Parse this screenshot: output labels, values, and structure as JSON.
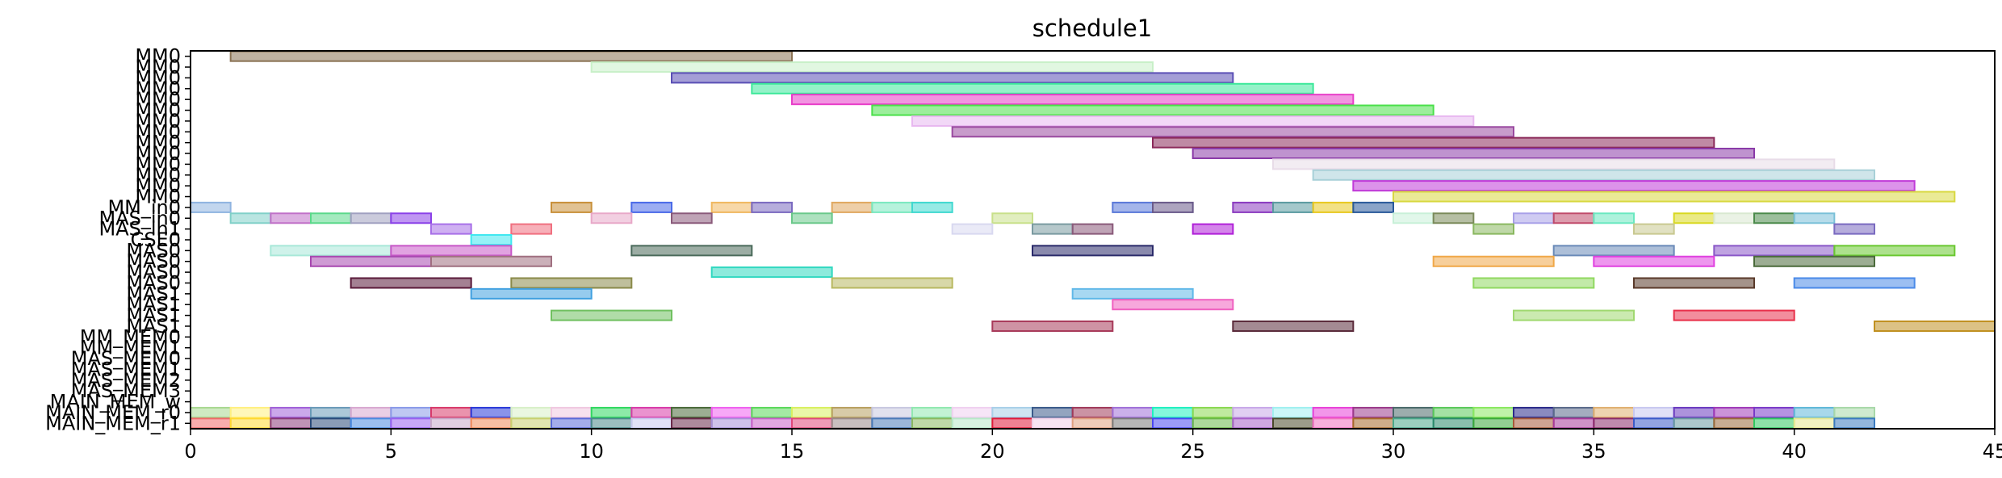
{
  "chart_data": {
    "type": "gantt",
    "title": "schedule1",
    "xlabel": "",
    "ylabel": "",
    "xlim": [
      0,
      45
    ],
    "xticks": [
      0,
      5,
      10,
      15,
      20,
      25,
      30,
      35,
      40,
      45
    ],
    "grid": false,
    "rows": [
      "MM0",
      "MM0",
      "MM0",
      "MM0",
      "MM0",
      "MM0",
      "MM0",
      "MM0",
      "MM0",
      "MM0",
      "MM0",
      "MM0",
      "MM0",
      "MM0",
      "MM_in0",
      "MAS_in0",
      "MAS_in1",
      "CSE0",
      "MAS0",
      "MAS0",
      "MAS0",
      "MAS0",
      "MAS1",
      "MAS1",
      "MAS1",
      "MAS1",
      "MM_MEM0",
      "MM_MEM1",
      "MAS_MEM0",
      "MAS_MEM1",
      "MAS_MEM2",
      "MAS_MEM3",
      "MAIN_MEM_w",
      "MAIN_MEM_r0",
      "MAIN_MEM_r1"
    ],
    "tasks": [
      {
        "row": 0,
        "start": 1,
        "end": 15,
        "color": "#8B7355"
      },
      {
        "row": 1,
        "start": 10,
        "end": 24,
        "color": "#C8F0C8"
      },
      {
        "row": 2,
        "start": 12,
        "end": 26,
        "color": "#5A4FB5"
      },
      {
        "row": 3,
        "start": 14,
        "end": 28,
        "color": "#3DE89A"
      },
      {
        "row": 4,
        "start": 15,
        "end": 29,
        "color": "#E83DC8"
      },
      {
        "row": 5,
        "start": 17,
        "end": 31,
        "color": "#4AE04A"
      },
      {
        "row": 6,
        "start": 18,
        "end": 32,
        "color": "#E8B8F0"
      },
      {
        "row": 7,
        "start": 19,
        "end": 33,
        "color": "#9A4AA0"
      },
      {
        "row": 8,
        "start": 24,
        "end": 38,
        "color": "#8B2A5A"
      },
      {
        "row": 9,
        "start": 25,
        "end": 39,
        "color": "#8A3AA8"
      },
      {
        "row": 10,
        "start": 27,
        "end": 41,
        "color": "#E8DCE8"
      },
      {
        "row": 11,
        "start": 28,
        "end": 42,
        "color": "#A8D0D8"
      },
      {
        "row": 12,
        "start": 29,
        "end": 43,
        "color": "#C03AD8"
      },
      {
        "row": 13,
        "start": 30,
        "end": 44,
        "color": "#D8D840"
      },
      {
        "row": 14,
        "start": 0,
        "end": 1,
        "color": "#8FB4E0"
      },
      {
        "row": 14,
        "start": 9,
        "end": 10,
        "color": "#C8903A"
      },
      {
        "row": 14,
        "start": 11,
        "end": 12,
        "color": "#4A6AE8"
      },
      {
        "row": 14,
        "start": 13,
        "end": 14,
        "color": "#F0B860"
      },
      {
        "row": 14,
        "start": 14,
        "end": 15,
        "color": "#7A6AC0"
      },
      {
        "row": 14,
        "start": 16,
        "end": 17,
        "color": "#E0A860"
      },
      {
        "row": 14,
        "start": 17,
        "end": 18,
        "color": "#7AE8C0"
      },
      {
        "row": 14,
        "start": 18,
        "end": 19,
        "color": "#40D8D0"
      },
      {
        "row": 14,
        "start": 23,
        "end": 24,
        "color": "#5A78D8"
      },
      {
        "row": 14,
        "start": 24,
        "end": 25,
        "color": "#6A5A8A"
      },
      {
        "row": 14,
        "start": 26,
        "end": 27,
        "color": "#8A3AC0"
      },
      {
        "row": 14,
        "start": 27,
        "end": 28,
        "color": "#5A9AA0"
      },
      {
        "row": 14,
        "start": 28,
        "end": 29,
        "color": "#E8C820"
      },
      {
        "row": 14,
        "start": 29,
        "end": 30,
        "color": "#2A5A9A"
      },
      {
        "row": 15,
        "start": 1,
        "end": 2,
        "color": "#80D0C8"
      },
      {
        "row": 15,
        "start": 2,
        "end": 3,
        "color": "#C070C8"
      },
      {
        "row": 15,
        "start": 3,
        "end": 4,
        "color": "#5AD88A"
      },
      {
        "row": 15,
        "start": 4,
        "end": 5,
        "color": "#A0A0C0"
      },
      {
        "row": 15,
        "start": 5,
        "end": 6,
        "color": "#8A40E8"
      },
      {
        "row": 15,
        "start": 10,
        "end": 11,
        "color": "#E8A8C8"
      },
      {
        "row": 15,
        "start": 12,
        "end": 13,
        "color": "#8A5A7A"
      },
      {
        "row": 15,
        "start": 15,
        "end": 16,
        "color": "#6AC88A"
      },
      {
        "row": 15,
        "start": 20,
        "end": 21,
        "color": "#C8E08A"
      },
      {
        "row": 15,
        "start": 30,
        "end": 31,
        "color": "#C8F0D8"
      },
      {
        "row": 15,
        "start": 31,
        "end": 32,
        "color": "#7A8A5A"
      },
      {
        "row": 15,
        "start": 33,
        "end": 34,
        "color": "#A8A0E8"
      },
      {
        "row": 15,
        "start": 34,
        "end": 35,
        "color": "#C04A6A"
      },
      {
        "row": 15,
        "start": 35,
        "end": 36,
        "color": "#6AE8C0"
      },
      {
        "row": 15,
        "start": 37,
        "end": 38,
        "color": "#D8D820"
      },
      {
        "row": 15,
        "start": 38,
        "end": 39,
        "color": "#D8E8D0"
      },
      {
        "row": 15,
        "start": 39,
        "end": 40,
        "color": "#4A8A4A"
      },
      {
        "row": 15,
        "start": 40,
        "end": 41,
        "color": "#7AC0D8"
      },
      {
        "row": 16,
        "start": 6,
        "end": 7,
        "color": "#A870E8"
      },
      {
        "row": 16,
        "start": 8,
        "end": 9,
        "color": "#F07080"
      },
      {
        "row": 16,
        "start": 19,
        "end": 20,
        "color": "#D8D8F0"
      },
      {
        "row": 16,
        "start": 21,
        "end": 22,
        "color": "#7A9AA0"
      },
      {
        "row": 16,
        "start": 22,
        "end": 23,
        "color": "#8A5A7A"
      },
      {
        "row": 16,
        "start": 25,
        "end": 26,
        "color": "#B020D8"
      },
      {
        "row": 16,
        "start": 32,
        "end": 33,
        "color": "#8AB860"
      },
      {
        "row": 16,
        "start": 36,
        "end": 37,
        "color": "#C8C890"
      },
      {
        "row": 16,
        "start": 41,
        "end": 42,
        "color": "#7A6AC0"
      },
      {
        "row": 17,
        "start": 7,
        "end": 8,
        "color": "#40E8F0"
      },
      {
        "row": 18,
        "start": 2,
        "end": 5,
        "color": "#A8E8D8"
      },
      {
        "row": 18,
        "start": 5,
        "end": 8,
        "color": "#C858C8"
      },
      {
        "row": 18,
        "start": 11,
        "end": 14,
        "color": "#4A6A5A"
      },
      {
        "row": 18,
        "start": 21,
        "end": 24,
        "color": "#2A2A6A"
      },
      {
        "row": 18,
        "start": 34,
        "end": 37,
        "color": "#6A8AB8"
      },
      {
        "row": 18,
        "start": 38,
        "end": 41,
        "color": "#8A58C8"
      },
      {
        "row": 18,
        "start": 41,
        "end": 44,
        "color": "#6AC830"
      },
      {
        "row": 19,
        "start": 3,
        "end": 6,
        "color": "#A848B0"
      },
      {
        "row": 19,
        "start": 6,
        "end": 9,
        "color": "#A07080"
      },
      {
        "row": 19,
        "start": 31,
        "end": 34,
        "color": "#F0A848"
      },
      {
        "row": 19,
        "start": 35,
        "end": 38,
        "color": "#E040E0"
      },
      {
        "row": 19,
        "start": 39,
        "end": 42,
        "color": "#4A6A3A"
      },
      {
        "row": 20,
        "start": 13,
        "end": 16,
        "color": "#30D8C0"
      },
      {
        "row": 21,
        "start": 4,
        "end": 7,
        "color": "#5A1A3A"
      },
      {
        "row": 21,
        "start": 8,
        "end": 11,
        "color": "#8A8A4A"
      },
      {
        "row": 21,
        "start": 16,
        "end": 19,
        "color": "#B8B860"
      },
      {
        "row": 21,
        "start": 32,
        "end": 35,
        "color": "#90D860"
      },
      {
        "row": 21,
        "start": 36,
        "end": 39,
        "color": "#5A3A2A"
      },
      {
        "row": 21,
        "start": 40,
        "end": 43,
        "color": "#4A8AE8"
      },
      {
        "row": 22,
        "start": 7,
        "end": 10,
        "color": "#40A0E0"
      },
      {
        "row": 22,
        "start": 22,
        "end": 25,
        "color": "#60B8E8"
      },
      {
        "row": 23,
        "start": 23,
        "end": 26,
        "color": "#F060C0"
      },
      {
        "row": 24,
        "start": 9,
        "end": 12,
        "color": "#70C060"
      },
      {
        "row": 24,
        "start": 33,
        "end": 36,
        "color": "#A0D870"
      },
      {
        "row": 24,
        "start": 37,
        "end": 40,
        "color": "#E8304A"
      },
      {
        "row": 25,
        "start": 20,
        "end": 23,
        "color": "#A83A5A"
      },
      {
        "row": 25,
        "start": 26,
        "end": 29,
        "color": "#5A2A3A"
      },
      {
        "row": 25,
        "start": 42,
        "end": 45,
        "color": "#C09020"
      },
      {
        "row": 33,
        "start": 0,
        "end": 1,
        "color": "#A8D890"
      },
      {
        "row": 33,
        "start": 1,
        "end": 2,
        "color": "#FFF080"
      },
      {
        "row": 33,
        "start": 2,
        "end": 3,
        "color": "#A060D8"
      },
      {
        "row": 33,
        "start": 3,
        "end": 4,
        "color": "#6A9AB8"
      },
      {
        "row": 33,
        "start": 4,
        "end": 5,
        "color": "#D8A8D0"
      },
      {
        "row": 33,
        "start": 5,
        "end": 6,
        "color": "#8A9AE8"
      },
      {
        "row": 33,
        "start": 6,
        "end": 7,
        "color": "#D83A6A"
      },
      {
        "row": 33,
        "start": 7,
        "end": 8,
        "color": "#2A3AD8"
      },
      {
        "row": 33,
        "start": 8,
        "end": 9,
        "color": "#D8F0C8"
      },
      {
        "row": 33,
        "start": 9,
        "end": 10,
        "color": "#F0C8E0"
      },
      {
        "row": 33,
        "start": 10,
        "end": 11,
        "color": "#30D860"
      },
      {
        "row": 33,
        "start": 11,
        "end": 12,
        "color": "#D83AA8"
      },
      {
        "row": 33,
        "start": 12,
        "end": 13,
        "color": "#4A6A3A"
      },
      {
        "row": 33,
        "start": 13,
        "end": 14,
        "color": "#F060F0"
      },
      {
        "row": 33,
        "start": 14,
        "end": 15,
        "color": "#5AD85A"
      },
      {
        "row": 33,
        "start": 15,
        "end": 16,
        "color": "#D8F060"
      },
      {
        "row": 33,
        "start": 16,
        "end": 17,
        "color": "#B8A060"
      },
      {
        "row": 33,
        "start": 17,
        "end": 18,
        "color": "#C8C8E0"
      },
      {
        "row": 33,
        "start": 18,
        "end": 19,
        "color": "#90E8B0"
      },
      {
        "row": 33,
        "start": 19,
        "end": 20,
        "color": "#F0D0F0"
      },
      {
        "row": 33,
        "start": 20,
        "end": 21,
        "color": "#A8D0E8"
      },
      {
        "row": 33,
        "start": 21,
        "end": 22,
        "color": "#3A5A8A"
      },
      {
        "row": 33,
        "start": 22,
        "end": 23,
        "color": "#A03A5A"
      },
      {
        "row": 33,
        "start": 23,
        "end": 24,
        "color": "#A070D8"
      },
      {
        "row": 33,
        "start": 24,
        "end": 25,
        "color": "#20F0C0"
      },
      {
        "row": 33,
        "start": 25,
        "end": 26,
        "color": "#8AD850"
      },
      {
        "row": 33,
        "start": 26,
        "end": 27,
        "color": "#C8A8E8"
      },
      {
        "row": 33,
        "start": 27,
        "end": 28,
        "color": "#A0F0F0"
      },
      {
        "row": 33,
        "start": 28,
        "end": 29,
        "color": "#E840D8"
      },
      {
        "row": 33,
        "start": 29,
        "end": 30,
        "color": "#9A3A8A"
      },
      {
        "row": 33,
        "start": 30,
        "end": 31,
        "color": "#4A6A6A"
      },
      {
        "row": 33,
        "start": 31,
        "end": 32,
        "color": "#5AC85A"
      },
      {
        "row": 33,
        "start": 32,
        "end": 33,
        "color": "#8AE860"
      },
      {
        "row": 33,
        "start": 33,
        "end": 34,
        "color": "#2A2A8A"
      },
      {
        "row": 33,
        "start": 34,
        "end": 35,
        "color": "#5A6A8A"
      },
      {
        "row": 33,
        "start": 35,
        "end": 36,
        "color": "#E0B070"
      },
      {
        "row": 33,
        "start": 36,
        "end": 37,
        "color": "#C8C8F0"
      },
      {
        "row": 33,
        "start": 37,
        "end": 38,
        "color": "#6A3AC0"
      },
      {
        "row": 33,
        "start": 38,
        "end": 39,
        "color": "#A03AB8"
      },
      {
        "row": 33,
        "start": 39,
        "end": 40,
        "color": "#7A3AC8"
      },
      {
        "row": 33,
        "start": 40,
        "end": 41,
        "color": "#60B8D8"
      },
      {
        "row": 33,
        "start": 41,
        "end": 42,
        "color": "#A8D8A8"
      },
      {
        "row": 34,
        "start": 0,
        "end": 1,
        "color": "#F06A6A"
      },
      {
        "row": 34,
        "start": 1,
        "end": 2,
        "color": "#FFD830"
      },
      {
        "row": 34,
        "start": 2,
        "end": 3,
        "color": "#8A3A7A"
      },
      {
        "row": 34,
        "start": 3,
        "end": 4,
        "color": "#2A4A7A"
      },
      {
        "row": 34,
        "start": 4,
        "end": 5,
        "color": "#4A8AE0"
      },
      {
        "row": 34,
        "start": 5,
        "end": 6,
        "color": "#9A60F0"
      },
      {
        "row": 34,
        "start": 6,
        "end": 7,
        "color": "#C8A8C8"
      },
      {
        "row": 34,
        "start": 7,
        "end": 8,
        "color": "#F08A5A"
      },
      {
        "row": 34,
        "start": 8,
        "end": 9,
        "color": "#C8D070"
      },
      {
        "row": 34,
        "start": 9,
        "end": 10,
        "color": "#5A6AD8"
      },
      {
        "row": 34,
        "start": 10,
        "end": 11,
        "color": "#4A8A8A"
      },
      {
        "row": 34,
        "start": 11,
        "end": 12,
        "color": "#C8C8F0"
      },
      {
        "row": 34,
        "start": 12,
        "end": 13,
        "color": "#6A2A4A"
      },
      {
        "row": 34,
        "start": 13,
        "end": 14,
        "color": "#A890D8"
      },
      {
        "row": 34,
        "start": 14,
        "end": 15,
        "color": "#C860C8"
      },
      {
        "row": 34,
        "start": 15,
        "end": 16,
        "color": "#E0487A"
      },
      {
        "row": 34,
        "start": 16,
        "end": 17,
        "color": "#9A8A8A"
      },
      {
        "row": 34,
        "start": 17,
        "end": 18,
        "color": "#4A7AB8"
      },
      {
        "row": 34,
        "start": 18,
        "end": 19,
        "color": "#8AB860"
      },
      {
        "row": 34,
        "start": 19,
        "end": 20,
        "color": "#B8E8C8"
      },
      {
        "row": 34,
        "start": 20,
        "end": 21,
        "color": "#E01A3A"
      },
      {
        "row": 34,
        "start": 21,
        "end": 22,
        "color": "#F0D0E8"
      },
      {
        "row": 34,
        "start": 22,
        "end": 23,
        "color": "#E0A080"
      },
      {
        "row": 34,
        "start": 23,
        "end": 24,
        "color": "#7A7A7A"
      },
      {
        "row": 34,
        "start": 24,
        "end": 25,
        "color": "#4A48F0"
      },
      {
        "row": 34,
        "start": 25,
        "end": 26,
        "color": "#6AB848"
      },
      {
        "row": 34,
        "start": 26,
        "end": 27,
        "color": "#A860C8"
      },
      {
        "row": 34,
        "start": 27,
        "end": 28,
        "color": "#4A4A2A"
      },
      {
        "row": 34,
        "start": 28,
        "end": 29,
        "color": "#F070C0"
      },
      {
        "row": 34,
        "start": 29,
        "end": 30,
        "color": "#A86A2A"
      },
      {
        "row": 34,
        "start": 30,
        "end": 31,
        "color": "#4AA88A"
      },
      {
        "row": 34,
        "start": 31,
        "end": 32,
        "color": "#2A8A6A"
      },
      {
        "row": 34,
        "start": 32,
        "end": 33,
        "color": "#3AA83A"
      },
      {
        "row": 34,
        "start": 33,
        "end": 34,
        "color": "#A85A3A"
      },
      {
        "row": 34,
        "start": 34,
        "end": 35,
        "color": "#A83A9A"
      },
      {
        "row": 34,
        "start": 35,
        "end": 36,
        "color": "#8A2A6A"
      },
      {
        "row": 34,
        "start": 36,
        "end": 37,
        "color": "#3A5AC8"
      },
      {
        "row": 34,
        "start": 37,
        "end": 38,
        "color": "#6A9AA0"
      },
      {
        "row": 34,
        "start": 38,
        "end": 39,
        "color": "#9A6A3A"
      },
      {
        "row": 34,
        "start": 39,
        "end": 40,
        "color": "#30C860"
      },
      {
        "row": 34,
        "start": 40,
        "end": 41,
        "color": "#E8E890"
      },
      {
        "row": 34,
        "start": 41,
        "end": 42,
        "color": "#3A7AC0"
      }
    ]
  }
}
